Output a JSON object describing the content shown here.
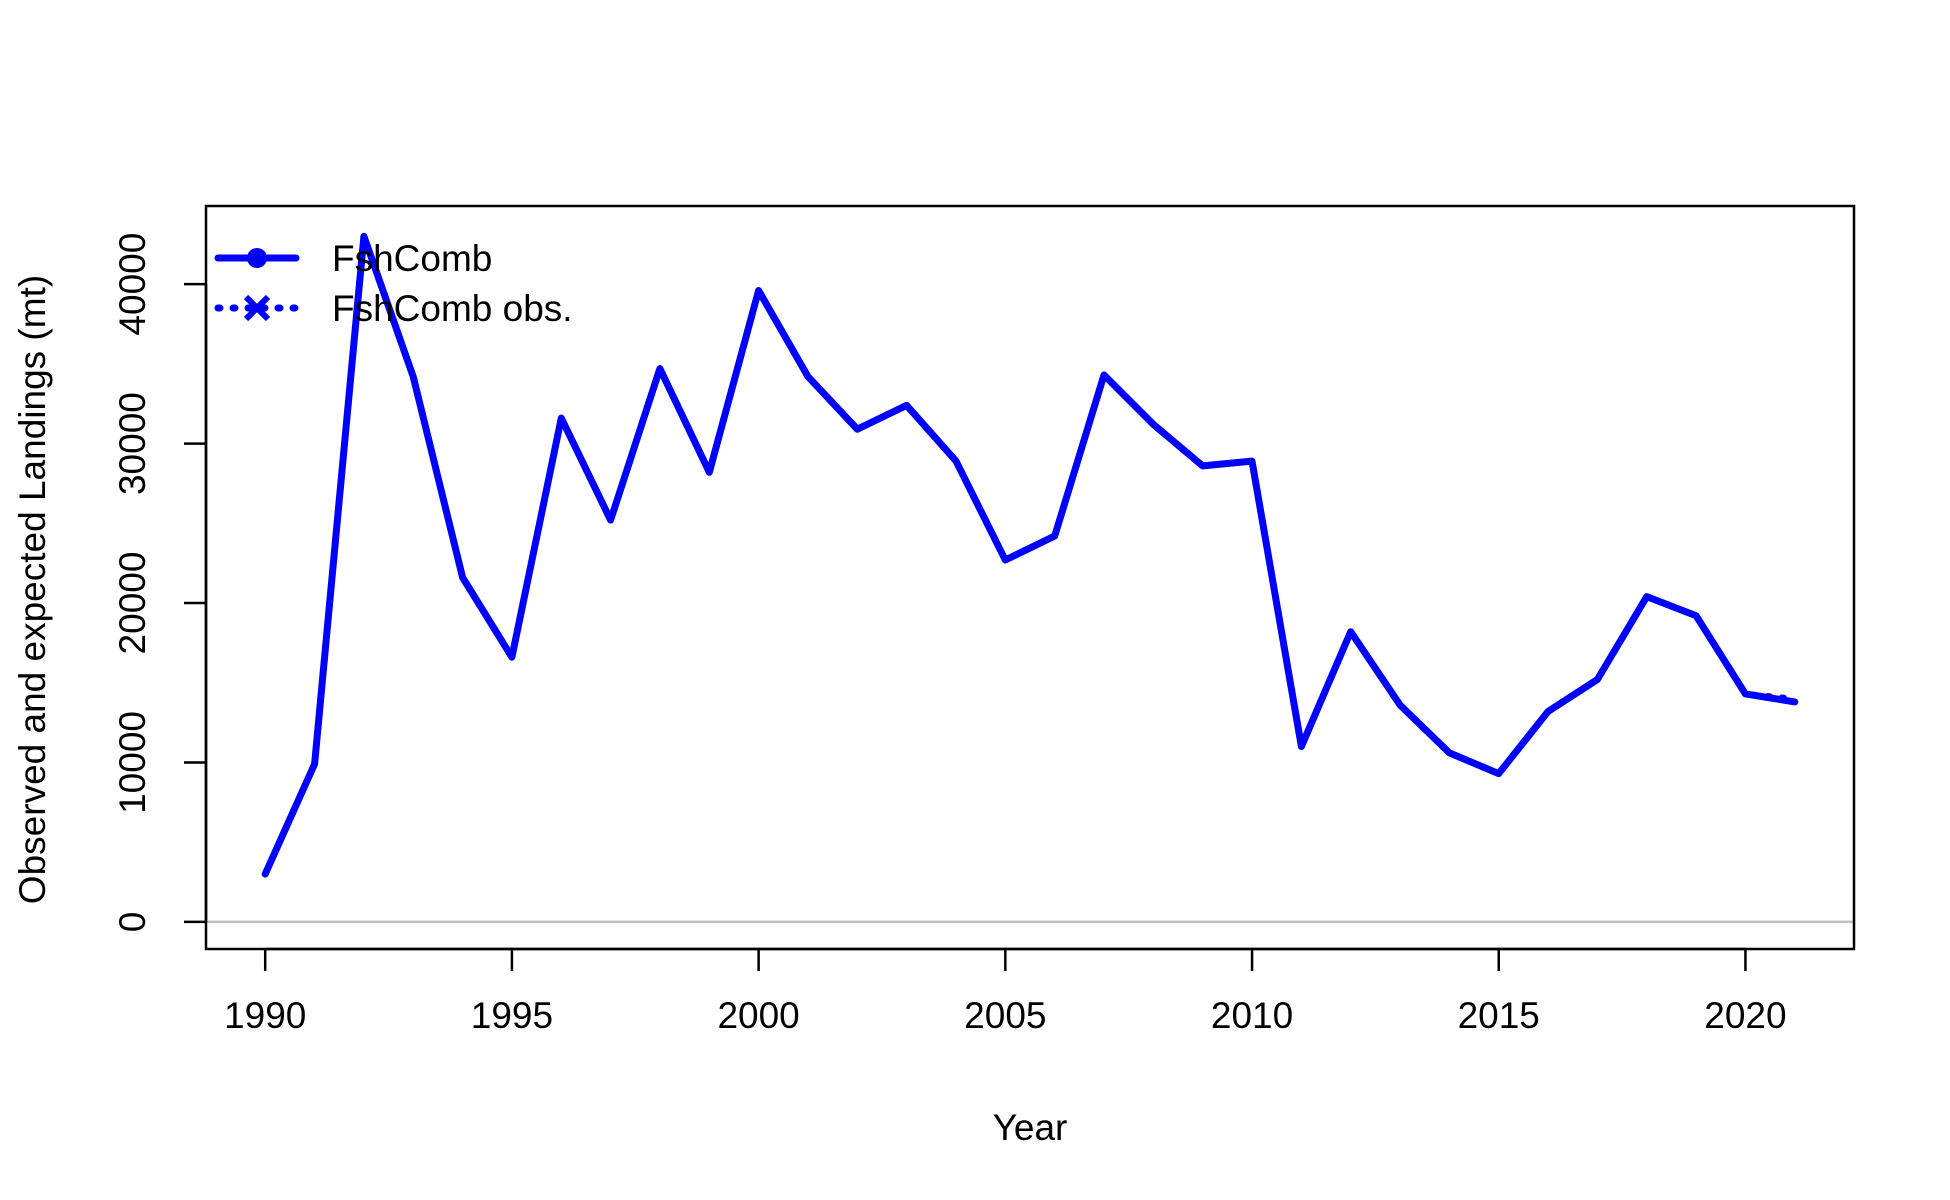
{
  "chart_data": {
    "type": "line",
    "title": "",
    "xlabel": "Year",
    "ylabel": "Observed and expected Landings (mt)",
    "xlim": [
      1988.8,
      2022.2
    ],
    "ylim": [
      -1700,
      44900
    ],
    "x_ticks": [
      1990,
      1995,
      2000,
      2005,
      2010,
      2015,
      2020
    ],
    "x_tick_labels": [
      "1990",
      "1995",
      "2000",
      "2005",
      "2010",
      "2015",
      "2020"
    ],
    "y_ticks": [
      0,
      10000,
      20000,
      30000,
      40000
    ],
    "y_tick_labels": [
      "0",
      "10000",
      "20000",
      "30000",
      "40000"
    ],
    "grid": false,
    "zero_line": true,
    "legend_position": "top-left",
    "series": [
      {
        "name": "FshComb",
        "color": "#0000ff",
        "line_style": "solid",
        "marker": "circle",
        "x": [
          1990,
          1991,
          1992,
          1993,
          1994,
          1995,
          1996,
          1997,
          1998,
          1999,
          2000,
          2001,
          2002,
          2003,
          2004,
          2005,
          2006,
          2007,
          2008,
          2009,
          2010,
          2011,
          2012,
          2013,
          2014,
          2015,
          2016,
          2017,
          2018,
          2019,
          2020,
          2021
        ],
        "y": [
          3000,
          9900,
          43000,
          34200,
          21600,
          16600,
          31600,
          25200,
          34700,
          28200,
          39600,
          34200,
          30900,
          32400,
          28900,
          22700,
          24200,
          34300,
          31200,
          28600,
          28900,
          11000,
          18200,
          13600,
          10600,
          9300,
          13200,
          15200,
          20400,
          19200,
          14300,
          13800
        ]
      },
      {
        "name": "FshComb obs.",
        "color": "#0000ff",
        "line_style": "dotted",
        "marker": "x",
        "x": [
          1990,
          1991,
          1992,
          1993,
          1994,
          1995,
          1996,
          1997,
          1998,
          1999,
          2000,
          2001,
          2002,
          2003,
          2004,
          2005,
          2006,
          2007,
          2008,
          2009,
          2010,
          2011,
          2012,
          2013,
          2014,
          2015,
          2016,
          2017,
          2018,
          2019,
          2020,
          2021
        ],
        "y": [
          3000,
          9900,
          43000,
          34200,
          21600,
          16600,
          31600,
          25200,
          34700,
          28200,
          39600,
          34200,
          30900,
          32400,
          28900,
          22700,
          24200,
          34300,
          31200,
          28600,
          28900,
          11000,
          18200,
          13600,
          10600,
          9300,
          13200,
          15200,
          20400,
          19200,
          14300,
          14000
        ]
      }
    ]
  }
}
